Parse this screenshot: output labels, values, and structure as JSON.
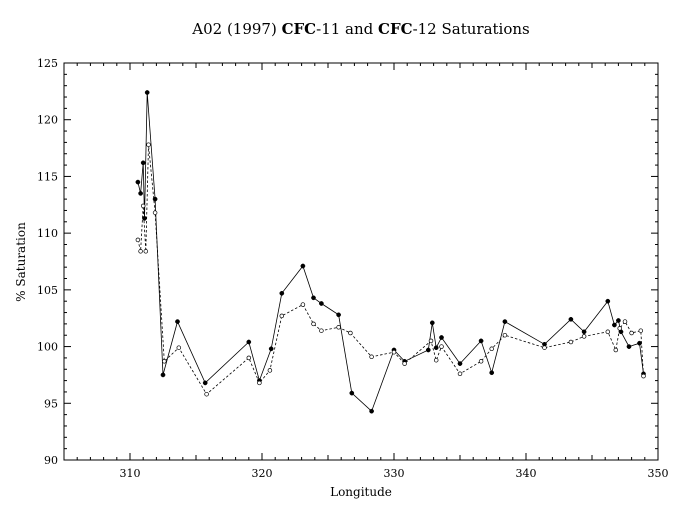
{
  "chart_data": {
    "type": "line",
    "title_parts": [
      {
        "text": "A02 (1997) ",
        "bold": false
      },
      {
        "text": "CFC",
        "bold": true
      },
      {
        "text": "-11 and ",
        "bold": false
      },
      {
        "text": "CFC",
        "bold": true
      },
      {
        "text": "-12 Saturations",
        "bold": false
      }
    ],
    "xlabel": "Longitude",
    "ylabel": "% Saturation",
    "xlim": [
      305,
      350
    ],
    "ylim": [
      90,
      125
    ],
    "xticks": [
      310,
      320,
      330,
      340,
      350
    ],
    "yticks": [
      90,
      95,
      100,
      105,
      110,
      115,
      120,
      125
    ],
    "grid": false,
    "series": [
      {
        "style": "solid",
        "marker": "filled-circle",
        "points": [
          [
            310.6,
            114.5
          ],
          [
            310.8,
            113.5
          ],
          [
            311.0,
            116.2
          ],
          [
            311.1,
            111.3
          ],
          [
            311.3,
            122.4
          ],
          [
            311.9,
            113.0
          ],
          [
            312.5,
            97.5
          ],
          [
            313.6,
            102.2
          ],
          [
            315.7,
            96.8
          ],
          [
            319.0,
            100.4
          ],
          [
            319.8,
            97.0
          ],
          [
            320.7,
            99.8
          ],
          [
            321.5,
            104.7
          ],
          [
            323.1,
            107.1
          ],
          [
            323.9,
            104.3
          ],
          [
            324.5,
            103.8
          ],
          [
            325.8,
            102.8
          ],
          [
            326.8,
            95.9
          ],
          [
            328.3,
            94.3
          ],
          [
            330.0,
            99.7
          ],
          [
            330.8,
            98.7
          ],
          [
            332.6,
            99.7
          ],
          [
            332.9,
            102.1
          ],
          [
            333.2,
            99.9
          ],
          [
            333.6,
            100.8
          ],
          [
            335.0,
            98.5
          ],
          [
            336.6,
            100.5
          ],
          [
            337.4,
            97.7
          ],
          [
            338.4,
            102.2
          ],
          [
            341.4,
            100.2
          ],
          [
            343.4,
            102.4
          ],
          [
            344.4,
            101.3
          ],
          [
            346.2,
            104.0
          ],
          [
            346.7,
            101.9
          ],
          [
            347.0,
            102.3
          ],
          [
            347.2,
            101.3
          ],
          [
            347.8,
            100.0
          ],
          [
            348.6,
            100.3
          ],
          [
            348.9,
            97.6
          ]
        ]
      },
      {
        "style": "dashed",
        "marker": "open-circle",
        "points": [
          [
            310.6,
            109.4
          ],
          [
            310.8,
            108.4
          ],
          [
            311.0,
            112.4
          ],
          [
            311.2,
            108.4
          ],
          [
            311.4,
            117.8
          ],
          [
            311.9,
            111.8
          ],
          [
            312.6,
            98.7
          ],
          [
            313.7,
            99.9
          ],
          [
            315.8,
            95.8
          ],
          [
            319.0,
            99.0
          ],
          [
            319.8,
            96.8
          ],
          [
            320.6,
            97.9
          ],
          [
            321.5,
            102.7
          ],
          [
            323.1,
            103.7
          ],
          [
            323.9,
            102.0
          ],
          [
            324.5,
            101.4
          ],
          [
            325.8,
            101.7
          ],
          [
            326.7,
            101.2
          ],
          [
            328.3,
            99.1
          ],
          [
            330.0,
            99.5
          ],
          [
            330.8,
            98.5
          ],
          [
            332.8,
            100.5
          ],
          [
            333.2,
            98.8
          ],
          [
            333.6,
            100.0
          ],
          [
            335.0,
            97.6
          ],
          [
            336.6,
            98.7
          ],
          [
            337.4,
            99.8
          ],
          [
            338.4,
            101.0
          ],
          [
            341.4,
            99.9
          ],
          [
            343.4,
            100.4
          ],
          [
            344.4,
            100.9
          ],
          [
            346.2,
            101.3
          ],
          [
            346.8,
            99.7
          ],
          [
            347.1,
            101.6
          ],
          [
            347.5,
            102.2
          ],
          [
            348.0,
            101.2
          ],
          [
            348.7,
            101.4
          ],
          [
            348.9,
            97.4
          ]
        ]
      }
    ]
  }
}
